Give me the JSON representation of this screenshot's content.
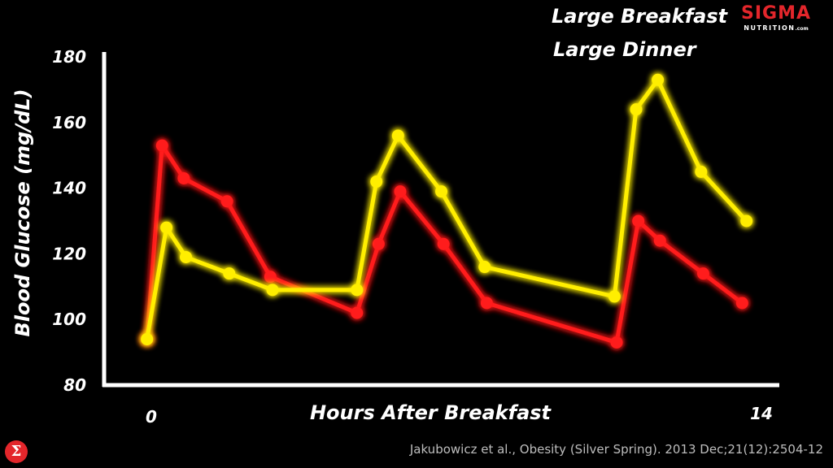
{
  "logo": {
    "brand": "SIGMA",
    "sub": "NUTRITION",
    "domain": ".com"
  },
  "citation": "Jakubowicz et al., Obesity (Silver Spring). 2013 Dec;21(12):2504-12",
  "colors": {
    "breakfast": "#ff1a1a",
    "dinner": "#ffee00",
    "logo_red": "#e3262b"
  },
  "chart_data": {
    "type": "line",
    "xlabel": "Hours After Breakfast",
    "ylabel": "Blood Glucose (mg/dL)",
    "xlim": [
      0,
      14
    ],
    "ylim": [
      80,
      180
    ],
    "x_ticks": [
      "0",
      "14"
    ],
    "y_ticks": [
      80,
      100,
      120,
      140,
      160,
      180
    ],
    "grid": false,
    "legend_position": "top",
    "series": [
      {
        "name": "Large Breakfast",
        "color": "#ff1a1a",
        "points": [
          [
            -0.1,
            94
          ],
          [
            0.25,
            153
          ],
          [
            0.75,
            143
          ],
          [
            1.75,
            136
          ],
          [
            2.75,
            113
          ],
          [
            4.75,
            102
          ],
          [
            5.25,
            123
          ],
          [
            5.75,
            139
          ],
          [
            6.75,
            123
          ],
          [
            7.75,
            105
          ],
          [
            10.75,
            93
          ],
          [
            11.25,
            130
          ],
          [
            11.75,
            124
          ],
          [
            12.75,
            114
          ],
          [
            13.65,
            105
          ]
        ]
      },
      {
        "name": "Large Dinner",
        "color": "#ffee00",
        "points": [
          [
            -0.1,
            94
          ],
          [
            0.35,
            128
          ],
          [
            0.8,
            119
          ],
          [
            1.8,
            114
          ],
          [
            2.8,
            109
          ],
          [
            4.75,
            109
          ],
          [
            5.2,
            142
          ],
          [
            5.7,
            156
          ],
          [
            6.7,
            139
          ],
          [
            7.7,
            116
          ],
          [
            10.7,
            107
          ],
          [
            11.2,
            164
          ],
          [
            11.7,
            173
          ],
          [
            12.7,
            145
          ],
          [
            13.75,
            130
          ]
        ]
      }
    ]
  }
}
